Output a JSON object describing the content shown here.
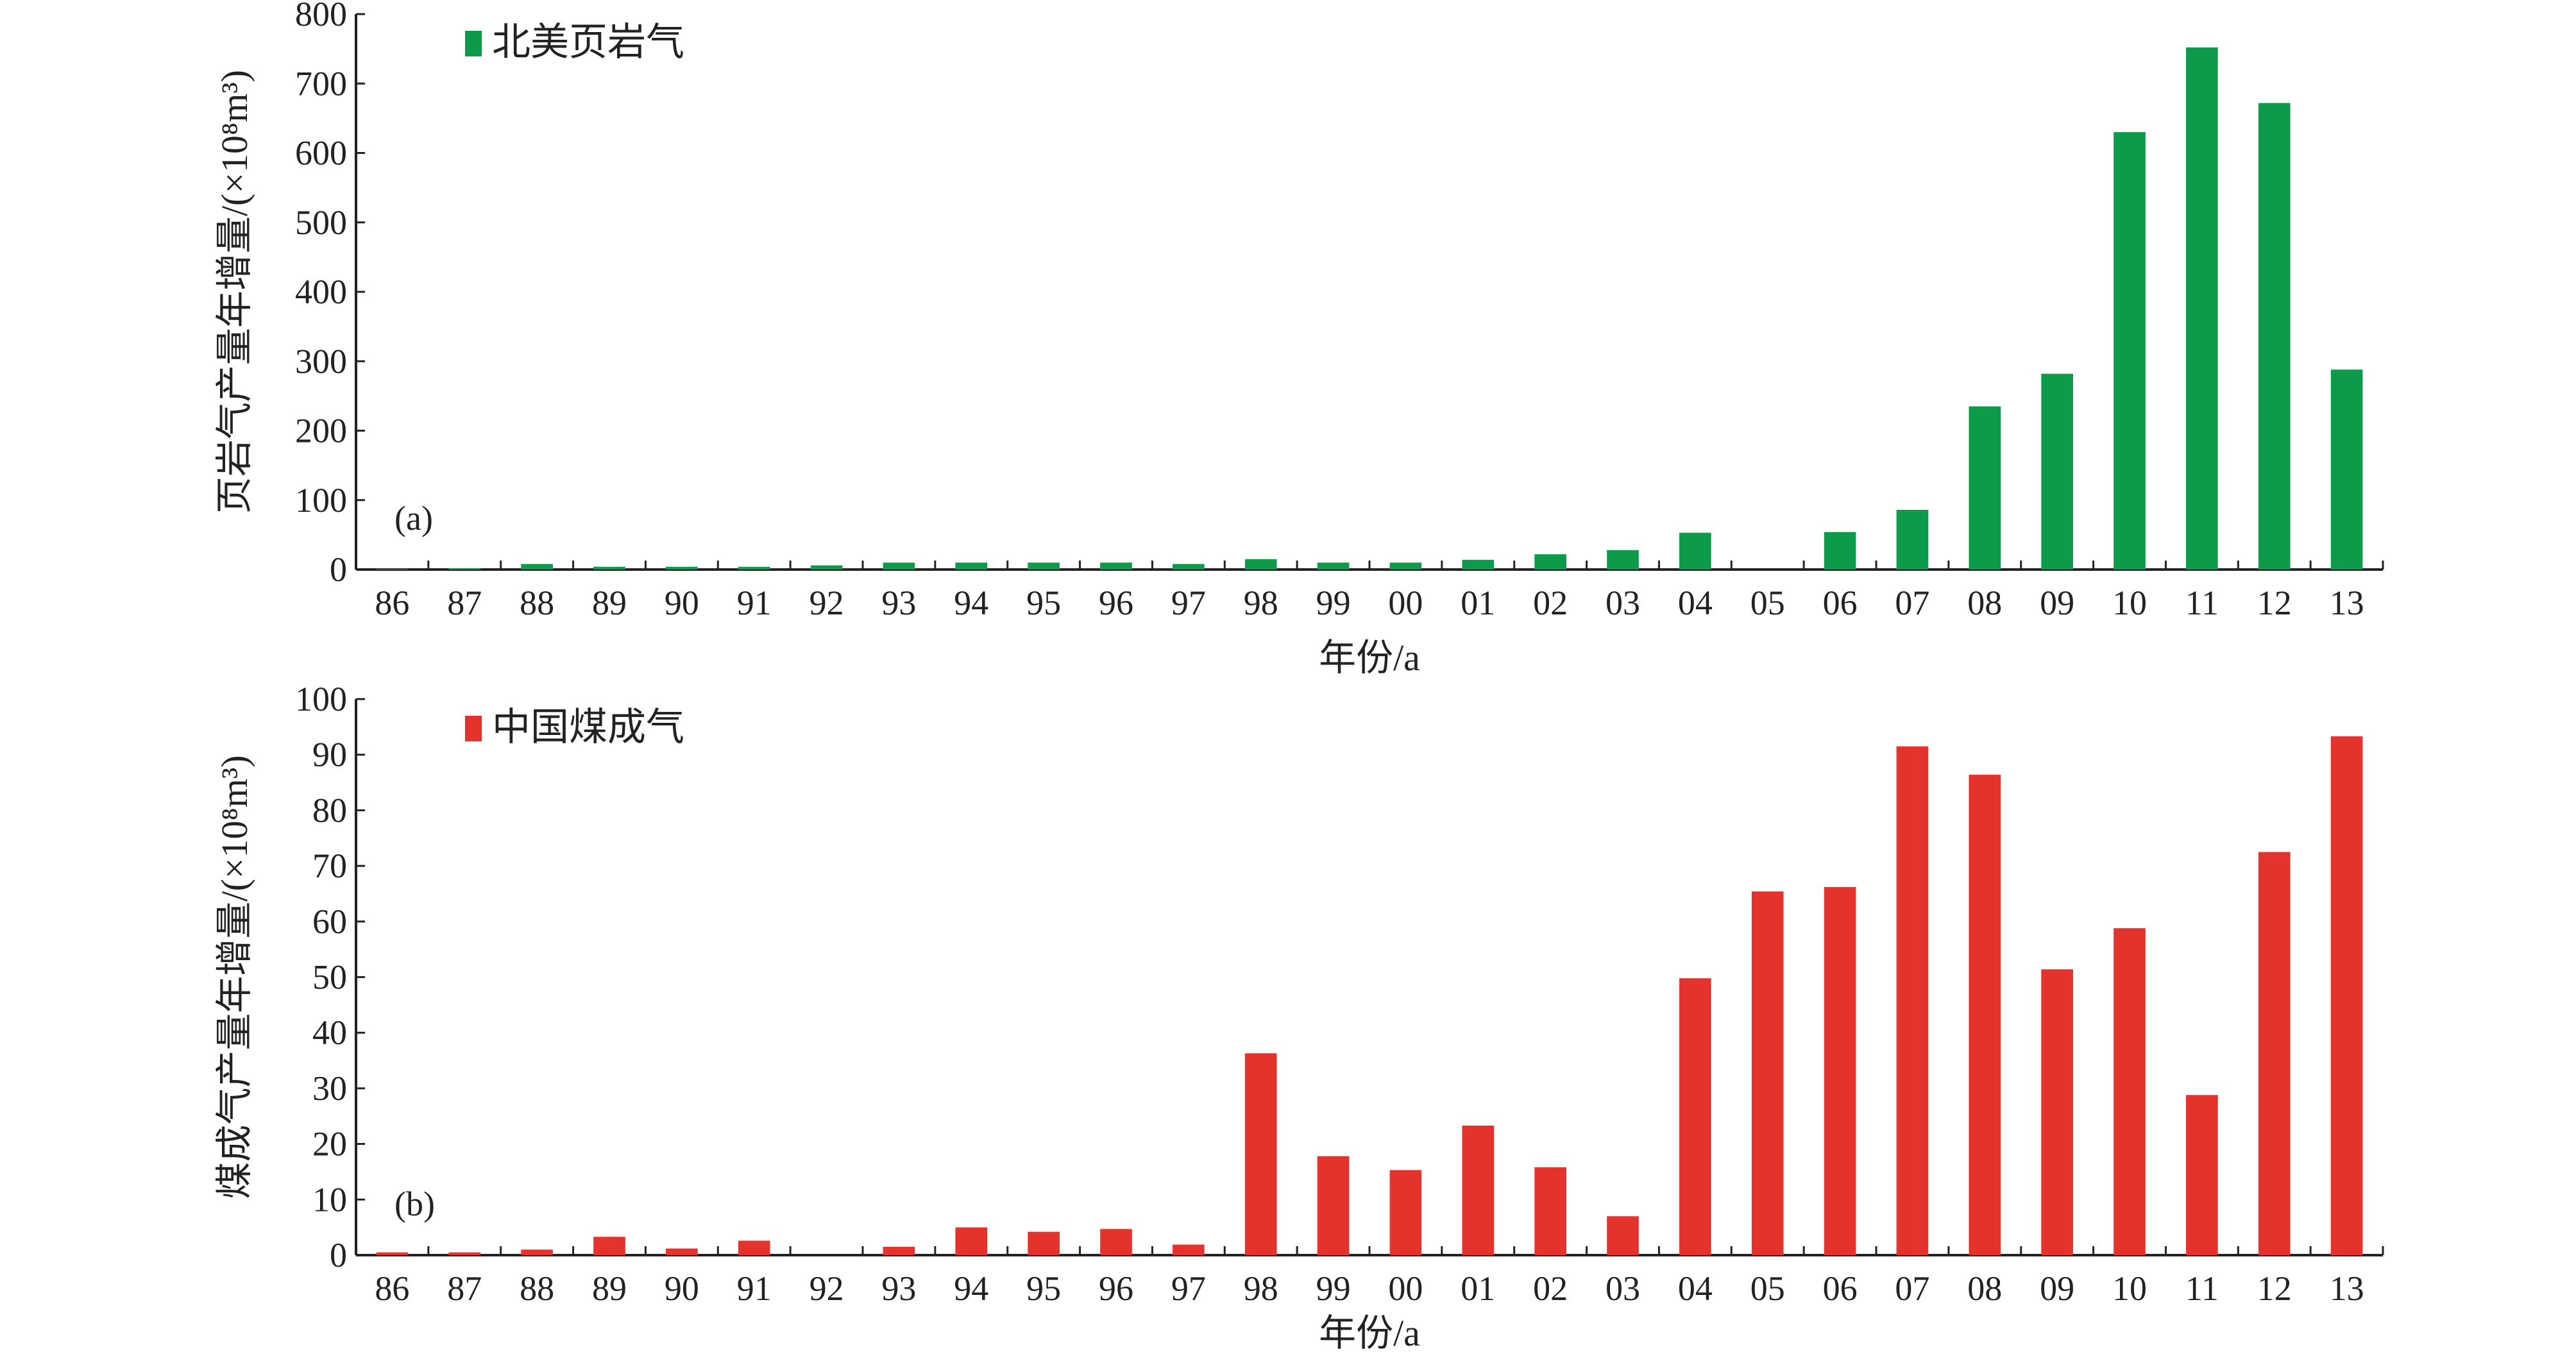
{
  "chart_data": [
    {
      "type": "bar",
      "panel_tag": "(a)",
      "legend": "北美页岩气",
      "color": "#0d9a4a",
      "ylabel": "页岩气产量年增量/(×10⁸m³)",
      "xlabel": "年份/a",
      "ylim": [
        0,
        800
      ],
      "yticks": [
        0,
        100,
        200,
        300,
        400,
        500,
        600,
        700,
        800
      ],
      "legend_position": "top-left",
      "grid": false,
      "categories": [
        "86",
        "87",
        "88",
        "89",
        "90",
        "91",
        "92",
        "93",
        "94",
        "95",
        "96",
        "97",
        "98",
        "99",
        "00",
        "01",
        "02",
        "03",
        "04",
        "05",
        "06",
        "07",
        "08",
        "09",
        "10",
        "11",
        "12",
        "13"
      ],
      "series": [
        {
          "name": "北美页岩气",
          "values": [
            1,
            2,
            8,
            4,
            4,
            4,
            6,
            10,
            10,
            10,
            10,
            8,
            15,
            10,
            10,
            14,
            22,
            28,
            53,
            0,
            54,
            86,
            235,
            282,
            630,
            752,
            672,
            288
          ]
        }
      ]
    },
    {
      "type": "bar",
      "panel_tag": "(b)",
      "legend": "中国煤成气",
      "color": "#e4322d",
      "ylabel": "煤成气产量年增量/(×10⁸m³)",
      "xlabel": "年份/a",
      "ylim": [
        0,
        100
      ],
      "yticks": [
        0,
        10,
        20,
        30,
        40,
        50,
        60,
        70,
        80,
        90,
        100
      ],
      "legend_position": "top-left",
      "grid": false,
      "categories": [
        "86",
        "87",
        "88",
        "89",
        "90",
        "91",
        "92",
        "93",
        "94",
        "95",
        "96",
        "97",
        "98",
        "99",
        "00",
        "01",
        "02",
        "03",
        "04",
        "05",
        "06",
        "07",
        "08",
        "09",
        "10",
        "11",
        "12",
        "13"
      ],
      "series": [
        {
          "name": "中国煤成气",
          "values": [
            0.5,
            0.5,
            1,
            3.3,
            1.2,
            2.6,
            0,
            1.5,
            5,
            4.2,
            4.7,
            1.9,
            36.3,
            17.8,
            15.3,
            23.3,
            15.8,
            7,
            49.8,
            65.4,
            66.2,
            91.5,
            86.4,
            51.4,
            58.8,
            28.8,
            72.5,
            93.3
          ]
        }
      ]
    }
  ]
}
